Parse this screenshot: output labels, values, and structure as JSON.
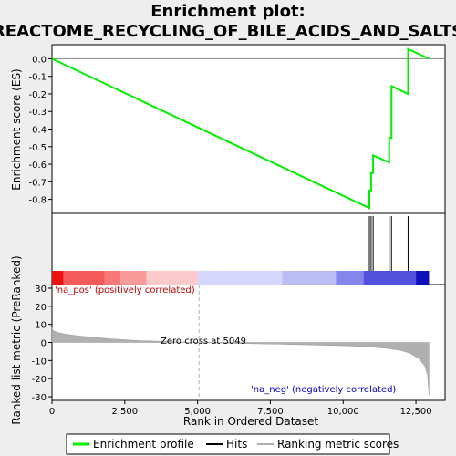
{
  "title": "Enrichment plot:",
  "subtitle": "REACTOME_RECYCLING_OF_BILE_ACIDS_AND_SALTS",
  "colors": {
    "enrichment_line": "#00ee00",
    "hits": "#000000",
    "ranking_fill": "#b0b0b0",
    "zero_cross_line": "#b0b0b0",
    "pos_label": "#cc0000",
    "neg_label": "#0000cc",
    "background": "#eeeeee",
    "panel": "#ffffff"
  },
  "chart_data": [
    {
      "type": "line",
      "name": "enrichment-profile",
      "ylabel": "Enrichment score (ES)",
      "ylim": [
        -0.88,
        0.08
      ],
      "xlim": [
        0,
        13500
      ],
      "yticks": [
        0.0,
        -0.1,
        -0.2,
        -0.3,
        -0.4,
        -0.5,
        -0.6,
        -0.7,
        -0.8
      ],
      "ytick_labels": [
        "0.0",
        "-0.1",
        "-0.2",
        "-0.3",
        "-0.4",
        "-0.5",
        "-0.6",
        "-0.7",
        "-0.8"
      ],
      "series": [
        {
          "x": [
            0,
            10900,
            10900,
            10960,
            10960,
            11030,
            11030,
            11580,
            11580,
            11660,
            11660,
            12230,
            12230,
            12950
          ],
          "y": [
            0.0,
            -0.85,
            -0.75,
            -0.75,
            -0.65,
            -0.65,
            -0.55,
            -0.59,
            -0.45,
            -0.45,
            -0.155,
            -0.2,
            0.055,
            0.0
          ]
        }
      ]
    },
    {
      "type": "heatmap",
      "name": "hits",
      "hits": [
        10900,
        10960,
        11030,
        11580,
        11660,
        12230
      ],
      "color_bands": [
        {
          "from": 0,
          "to": 400,
          "color": "#ee1111"
        },
        {
          "from": 400,
          "to": 1800,
          "color": "#f55a5a"
        },
        {
          "from": 1800,
          "to": 2350,
          "color": "#f87878"
        },
        {
          "from": 2350,
          "to": 3250,
          "color": "#f99a9a"
        },
        {
          "from": 3250,
          "to": 5000,
          "color": "#fccaca"
        },
        {
          "from": 5000,
          "to": 7900,
          "color": "#d6d6fa"
        },
        {
          "from": 7900,
          "to": 9750,
          "color": "#bdbdf6"
        },
        {
          "from": 9750,
          "to": 10700,
          "color": "#8585ee"
        },
        {
          "from": 10700,
          "to": 12500,
          "color": "#5050dd"
        },
        {
          "from": 12500,
          "to": 12950,
          "color": "#1010bb"
        }
      ]
    },
    {
      "type": "area",
      "name": "ranked-list-metric",
      "xlabel": "Rank in Ordered Dataset",
      "ylabel": "Ranked list metric (PreRanked)",
      "ylim": [
        -32,
        32
      ],
      "xlim": [
        0,
        13500
      ],
      "yticks": [
        30,
        20,
        10,
        0,
        -10,
        -20,
        -30
      ],
      "ytick_labels": [
        "30",
        "20",
        "10",
        "0",
        "-10",
        "-20",
        "-30"
      ],
      "xticks": [
        0,
        2500,
        5000,
        7500,
        10000,
        12500
      ],
      "xtick_labels": [
        "0",
        "2,500",
        "5,000",
        "7,500",
        "10,000",
        "12,500"
      ],
      "x": [
        0,
        50,
        200,
        500,
        1000,
        2000,
        3000,
        4000,
        5049,
        6000,
        7000,
        8000,
        9000,
        10000,
        10500,
        11000,
        11500,
        12000,
        12300,
        12600,
        12800,
        12900,
        12950
      ],
      "values": [
        8,
        6.5,
        5.5,
        4.5,
        3.5,
        2,
        1,
        0.5,
        0,
        -0.4,
        -0.7,
        -1,
        -1.4,
        -1.8,
        -2.1,
        -2.6,
        -3.3,
        -4.5,
        -6,
        -9,
        -13,
        -18,
        -29
      ],
      "zero_cross": 5049,
      "annotations": {
        "pos": "'na_pos' (positively correlated)",
        "zero": "Zero cross at 5049",
        "neg": "'na_neg' (negatively correlated)"
      }
    }
  ],
  "legend": {
    "items": [
      {
        "label": "Enrichment profile",
        "color": "#00ee00",
        "kind": "line"
      },
      {
        "label": "Hits",
        "color": "#000000",
        "kind": "line"
      },
      {
        "label": "Ranking metric scores",
        "color": "#b0b0b0",
        "kind": "line"
      }
    ]
  }
}
